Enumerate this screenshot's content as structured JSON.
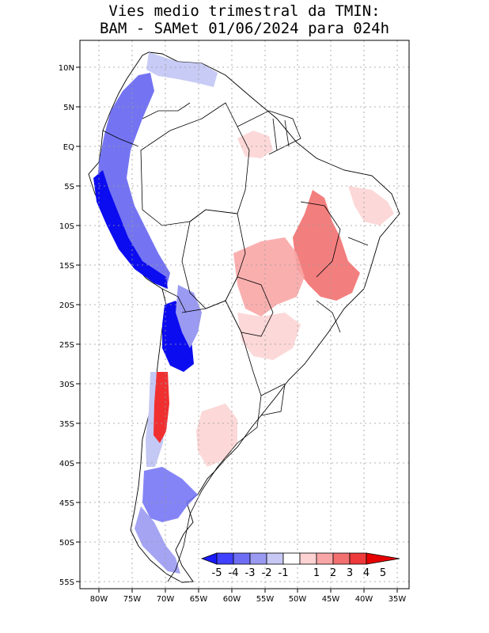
{
  "title_line1": "Vies medio trimestral da TMIN:",
  "title_line2": "BAM - SAMet 01/06/2024  para 024h",
  "lon_labels": [
    "80W",
    "75W",
    "70W",
    "65W",
    "60W",
    "55W",
    "50W",
    "45W",
    "40W",
    "35W"
  ],
  "lat_labels": [
    "10N",
    "5N",
    "EQ",
    "5S",
    "10S",
    "15S",
    "20S",
    "25S",
    "30S",
    "35S",
    "40S",
    "45S",
    "50S",
    "55S"
  ],
  "colorbar": {
    "labels": [
      "-5",
      "-4",
      "-3",
      "-2",
      "-1",
      "1",
      "2",
      "3",
      "4",
      "5"
    ],
    "colors": [
      "#1a1aff",
      "#4040ff",
      "#6e6ef5",
      "#9a9af2",
      "#c8c8f5",
      "#ffffff",
      "#fdd2d2",
      "#f9a6a6",
      "#f27070",
      "#ee3a3a",
      "#e60000"
    ]
  },
  "field_colors": {
    "strong_negative": "#0c0cf0",
    "negative": "#5c5cf0",
    "weak_negative": "#c4c8f4",
    "weak_positive": "#fcd8d8",
    "positive": "#f59a9a",
    "strong_positive": "#f03030"
  }
}
